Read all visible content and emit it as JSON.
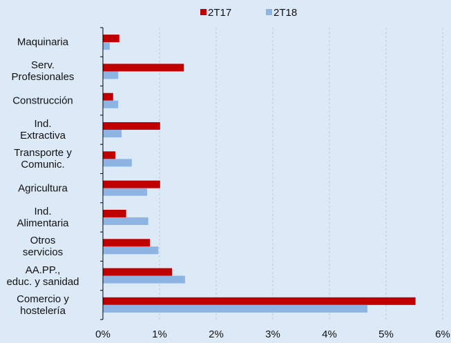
{
  "chart_data": {
    "type": "hbar",
    "categories": [
      "Maquinaria",
      "Serv.\nProfesionales",
      "Construcción",
      "Ind.\nExtractiva",
      "Transporte y\nComunic.",
      "Agricultura",
      "Ind.\nAlimentaria",
      "Otros\nservicios",
      "AA.PP.,\neduc. y sanidad",
      "Comercio y\nhostelería"
    ],
    "series": [
      {
        "name": "2T17",
        "color": "#c00000",
        "values": [
          0.29,
          1.43,
          0.18,
          1.01,
          0.22,
          1.01,
          0.41,
          0.83,
          1.22,
          5.52
        ]
      },
      {
        "name": "2T18",
        "color": "#8db4e2",
        "values": [
          0.12,
          0.27,
          0.27,
          0.33,
          0.51,
          0.78,
          0.8,
          0.98,
          1.45,
          4.67
        ]
      }
    ],
    "xlim": [
      0,
      6
    ],
    "xticks": [
      {
        "value": 0,
        "label": "0%"
      },
      {
        "value": 1,
        "label": "1%"
      },
      {
        "value": 2,
        "label": "2%"
      },
      {
        "value": 3,
        "label": "3%"
      },
      {
        "value": 4,
        "label": "4%"
      },
      {
        "value": 5,
        "label": "5%"
      },
      {
        "value": 6,
        "label": "6%"
      }
    ],
    "grid": true,
    "legend": "top"
  }
}
